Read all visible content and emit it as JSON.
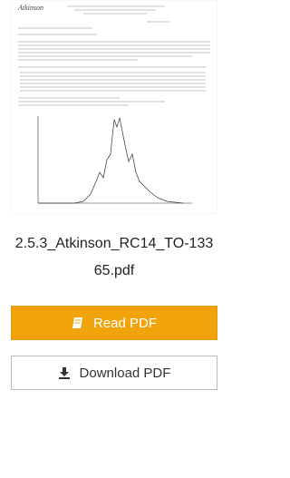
{
  "thumbnail": {
    "handwriting": "Atkinson"
  },
  "file": {
    "name": "2.5.3_Atkinson_RC14_TO-13365.pdf"
  },
  "buttons": {
    "read": "Read PDF",
    "download": "Download PDF"
  }
}
